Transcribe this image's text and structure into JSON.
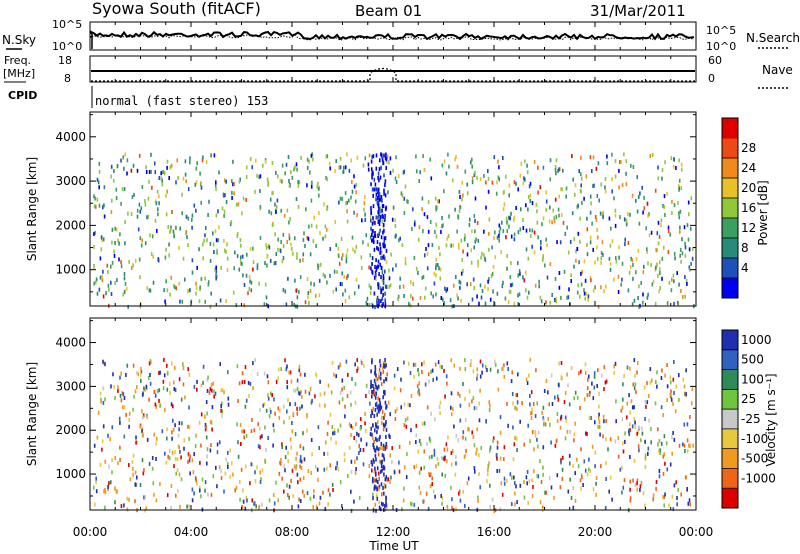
{
  "header": {
    "station": "Syowa South (fitACF)",
    "beam": "Beam 01",
    "date": "31/Mar/2011"
  },
  "noise_panel": {
    "left_label": "N.Sky",
    "right_label": "N.Search",
    "y_ticks": [
      "10^5",
      "10^0"
    ]
  },
  "freq_panel": {
    "left_label_1": "Freq.",
    "left_label_2": "[MHz]",
    "left_ticks": [
      "18",
      "8"
    ],
    "right_label": "Nave",
    "right_ticks": [
      "60",
      "0"
    ]
  },
  "cpid": {
    "label": "CPID",
    "value": "normal (fast stereo) 153"
  },
  "chart_data": [
    {
      "type": "heatmap",
      "name": "power",
      "ylabel": "Slant Range [km]",
      "ylim": [
        180,
        4560
      ],
      "y_ticks": [
        1000,
        2000,
        3000,
        4000
      ],
      "colorbar_label": "Power [dB]",
      "colorbar_ticks": [
        "4",
        "8",
        "12",
        "16",
        "20",
        "24",
        "28"
      ],
      "colors": [
        "#0000ee",
        "#1f4fb8",
        "#2a8a7a",
        "#3aa060",
        "#90c83c",
        "#e6c12a",
        "#f08a1c",
        "#ec4a14",
        "#dd0000"
      ]
    },
    {
      "type": "heatmap",
      "name": "velocity",
      "ylabel": "Slant Range [km]",
      "ylim": [
        180,
        4560
      ],
      "y_ticks": [
        1000,
        2000,
        3000,
        4000
      ],
      "colorbar_label": "Velocity [m s⁻¹]",
      "colorbar_ticks": [
        "1000",
        "500",
        "100",
        "25",
        "-25",
        "-100",
        "-500",
        "-1000"
      ],
      "colors": [
        "#1f2fb0",
        "#3060c0",
        "#2f8a5a",
        "#70c440",
        "#c8c8c8",
        "#e8c840",
        "#f09a20",
        "#ee6418",
        "#dd0000"
      ]
    }
  ],
  "x_axis": {
    "label": "Time UT",
    "ticks": [
      "00:00",
      "04:00",
      "08:00",
      "12:00",
      "16:00",
      "20:00",
      "00:00"
    ]
  }
}
